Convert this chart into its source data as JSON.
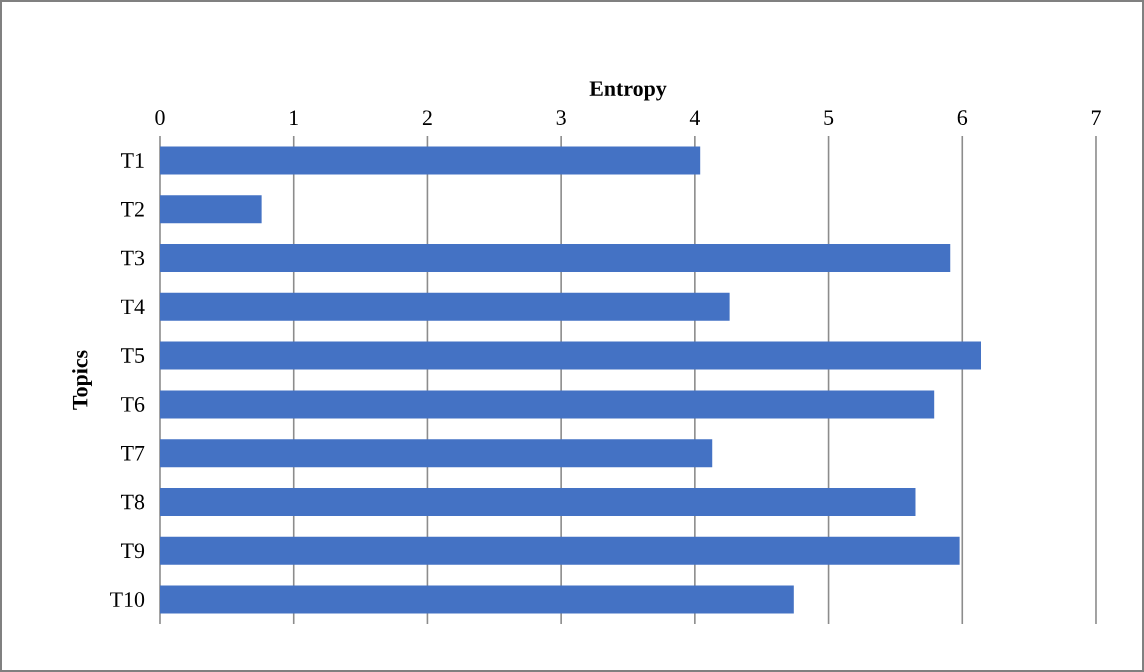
{
  "chart_data": {
    "type": "bar",
    "orientation": "horizontal",
    "xlabel": "Entropy",
    "ylabel": "Topics",
    "categories": [
      "T1",
      "T2",
      "T3",
      "T4",
      "T5",
      "T6",
      "T7",
      "T8",
      "T9",
      "T10"
    ],
    "values": [
      4.04,
      0.76,
      5.91,
      4.26,
      6.14,
      5.79,
      4.13,
      5.65,
      5.98,
      4.74
    ],
    "color": "#4472c4",
    "xlim": [
      0,
      7
    ],
    "xticks": [
      0,
      1,
      2,
      3,
      4,
      5,
      6,
      7
    ],
    "grid": "x"
  }
}
